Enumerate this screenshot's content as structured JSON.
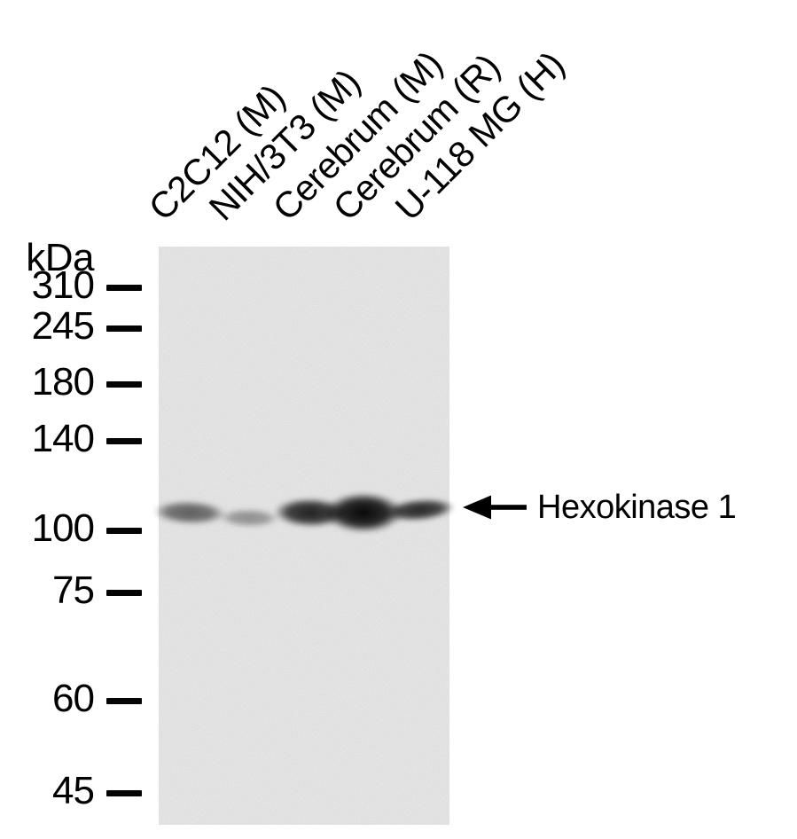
{
  "figure": {
    "type": "western blot",
    "unit_label": "kDa",
    "marker_labels": [
      "310",
      "245",
      "180",
      "140",
      "100",
      "75",
      "60",
      "45"
    ],
    "lanes": [
      {
        "label": "C2C12 (M)",
        "band_intensity": 0.6
      },
      {
        "label": "NIH/3T3 (M)",
        "band_intensity": 0.38
      },
      {
        "label": "Cerebrum (M)",
        "band_intensity": 0.88
      },
      {
        "label": "Cerebrum (R)",
        "band_intensity": 1.0
      },
      {
        "label": "U-118 MG (H)",
        "band_intensity": 0.85
      }
    ],
    "annotation": {
      "label": "Hexokinase 1"
    },
    "colors": {
      "text": "#000000",
      "band": "#000000",
      "blot_background": "#ededed",
      "page_background": "#ffffff"
    }
  }
}
